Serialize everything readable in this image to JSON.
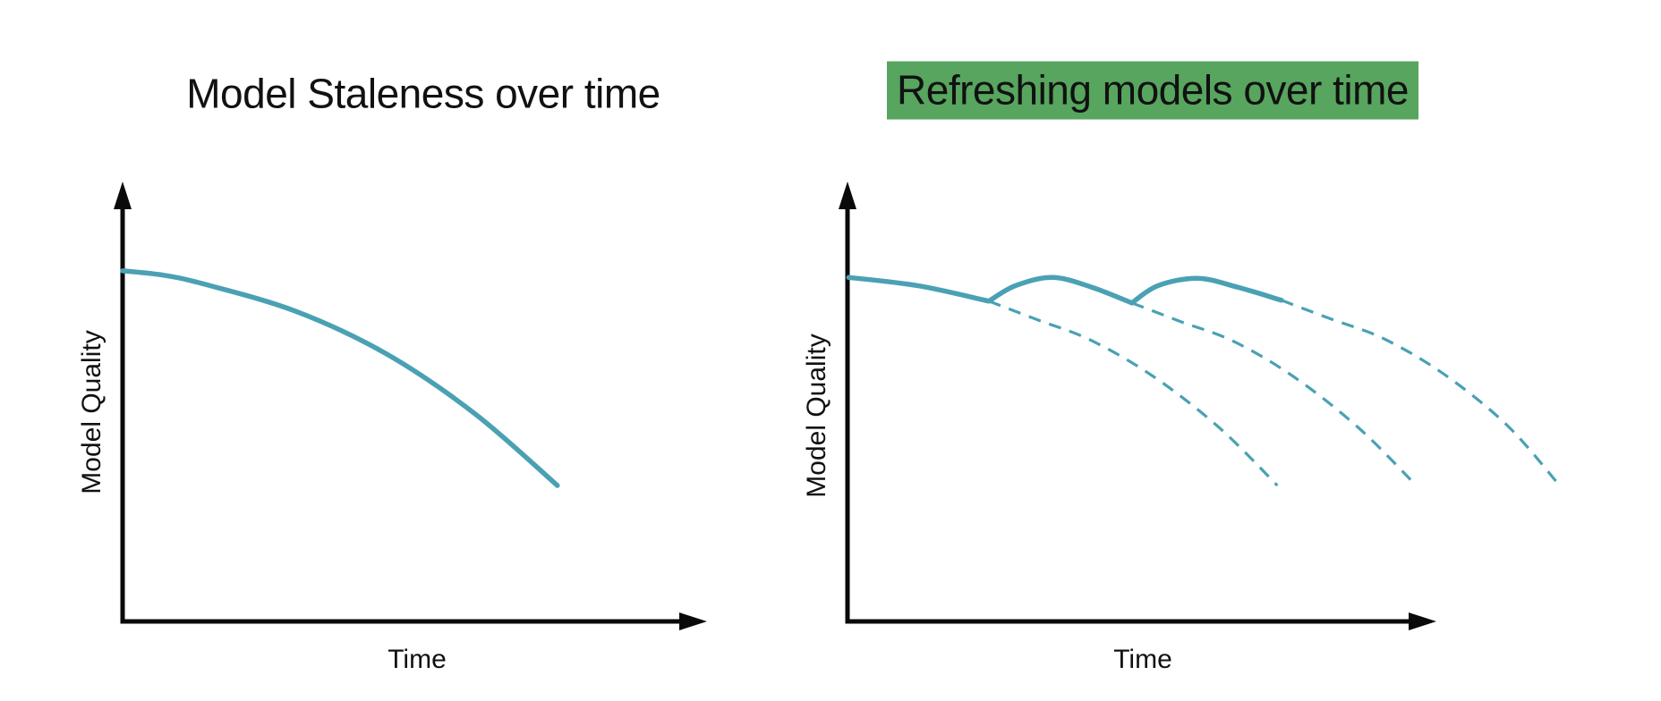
{
  "page": {
    "background": "#ffffff"
  },
  "colors": {
    "curve_teal": "#4AA1B3",
    "axis": "#0a0a0a",
    "text": "#111111",
    "title_highlight_green": "#57A55E"
  },
  "chart_data": [
    {
      "type": "line",
      "title": "Model Staleness over time",
      "xlabel": "Time",
      "ylabel": "Model Quality",
      "x_range": [
        0,
        1
      ],
      "y_range": [
        0,
        1
      ],
      "grid": false,
      "ticks": false,
      "legend": false,
      "axis_style": "conceptual axes with arrowheads, no tick labels",
      "series": [
        {
          "name": "model-quality-without-refresh",
          "style": "solid",
          "description": "model quality decays increasingly fast over time",
          "segments": [
            [
              [
                0.0,
                0.797
              ],
              [
                0.07,
                0.787
              ],
              [
                0.142,
                0.766
              ],
              [
                0.296,
                0.705
              ],
              [
                0.449,
                0.61
              ],
              [
                0.602,
                0.473
              ],
              [
                0.744,
                0.309
              ]
            ]
          ]
        }
      ]
    },
    {
      "type": "line",
      "title": "Refreshing models over time",
      "title_highlight": true,
      "xlabel": "Time",
      "ylabel": "Model Quality",
      "x_range": [
        0,
        1.21
      ],
      "y_range": [
        0,
        1
      ],
      "grid": false,
      "ticks": false,
      "legend": false,
      "axis_style": "conceptual axes with arrowheads, no tick labels",
      "series": [
        {
          "name": "refreshed-model-quality",
          "style": "solid",
          "description": "quality dips then recovers at each model refresh",
          "segments": [
            [
              [
                0.002,
                0.782
              ],
              [
                0.12,
                0.763
              ],
              [
                0.24,
                0.728
              ]
            ],
            [
              [
                0.24,
                0.728
              ],
              [
                0.285,
                0.763
              ],
              [
                0.347,
                0.782
              ],
              [
                0.412,
                0.761
              ],
              [
                0.483,
                0.724
              ]
            ],
            [
              [
                0.483,
                0.724
              ],
              [
                0.527,
                0.763
              ],
              [
                0.594,
                0.78
              ],
              [
                0.662,
                0.76
              ],
              [
                0.737,
                0.73
              ]
            ]
          ]
        },
        {
          "name": "stale-decay-if-no-refresh-1",
          "style": "dashed",
          "description": "counterfactual decay continuing from first refresh point",
          "segments": [
            [
              [
                0.24,
                0.728
              ],
              [
                0.324,
                0.685
              ],
              [
                0.412,
                0.64
              ],
              [
                0.517,
                0.559
              ],
              [
                0.63,
                0.442
              ],
              [
                0.73,
                0.309
              ]
            ]
          ]
        },
        {
          "name": "stale-decay-if-no-refresh-2",
          "style": "dashed",
          "description": "counterfactual decay continuing from second refresh point",
          "segments": [
            [
              [
                0.483,
                0.724
              ],
              [
                0.565,
                0.682
              ],
              [
                0.655,
                0.637
              ],
              [
                0.757,
                0.557
              ],
              [
                0.868,
                0.44
              ],
              [
                0.965,
                0.31
              ]
            ]
          ]
        },
        {
          "name": "stale-decay-if-no-refresh-3",
          "style": "dashed",
          "description": "counterfactual decay continuing from end of solid curve",
          "segments": [
            [
              [
                0.737,
                0.73
              ],
              [
                0.82,
                0.688
              ],
              [
                0.91,
                0.643
              ],
              [
                1.012,
                0.563
              ],
              [
                1.12,
                0.446
              ],
              [
                1.208,
                0.311
              ]
            ]
          ]
        }
      ]
    }
  ]
}
